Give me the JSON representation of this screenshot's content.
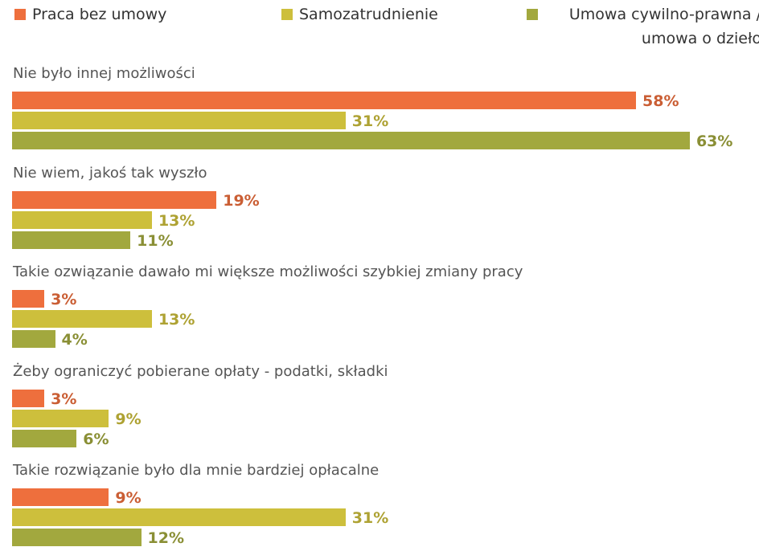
{
  "chart_data": {
    "type": "bar",
    "orientation": "horizontal",
    "categories": [
      "Nie było innej możliwości",
      "Nie wiem, jakoś tak wyszło",
      "Takie ozwiązanie dawało mi większe możliwości szybkiej zmiany pracy",
      "Żeby ograniczyć pobierane opłaty - podatki, składki",
      "Takie rozwiązanie było dla mnie bardziej opłacalne"
    ],
    "series": [
      {
        "name": "Praca bez umowy",
        "color": "#ee6f3d",
        "values": [
          58,
          19,
          3,
          3,
          9
        ],
        "value_labels": [
          "58%",
          "19%",
          "3%",
          "3%",
          "9%"
        ]
      },
      {
        "name": "Samozatrudnienie",
        "color": "#cdbf3c",
        "values": [
          31,
          13,
          13,
          9,
          31
        ],
        "value_labels": [
          "31%",
          "13%",
          "13%",
          "9%",
          "31%"
        ]
      },
      {
        "name": "Umowa cywilno-prawna / umowa o dzieło",
        "color": "#a2a83e",
        "values": [
          63,
          11,
          4,
          6,
          12
        ],
        "value_labels": [
          "63%",
          "11%",
          "4%",
          "6%",
          "12%"
        ]
      }
    ],
    "legend": "top"
  }
}
